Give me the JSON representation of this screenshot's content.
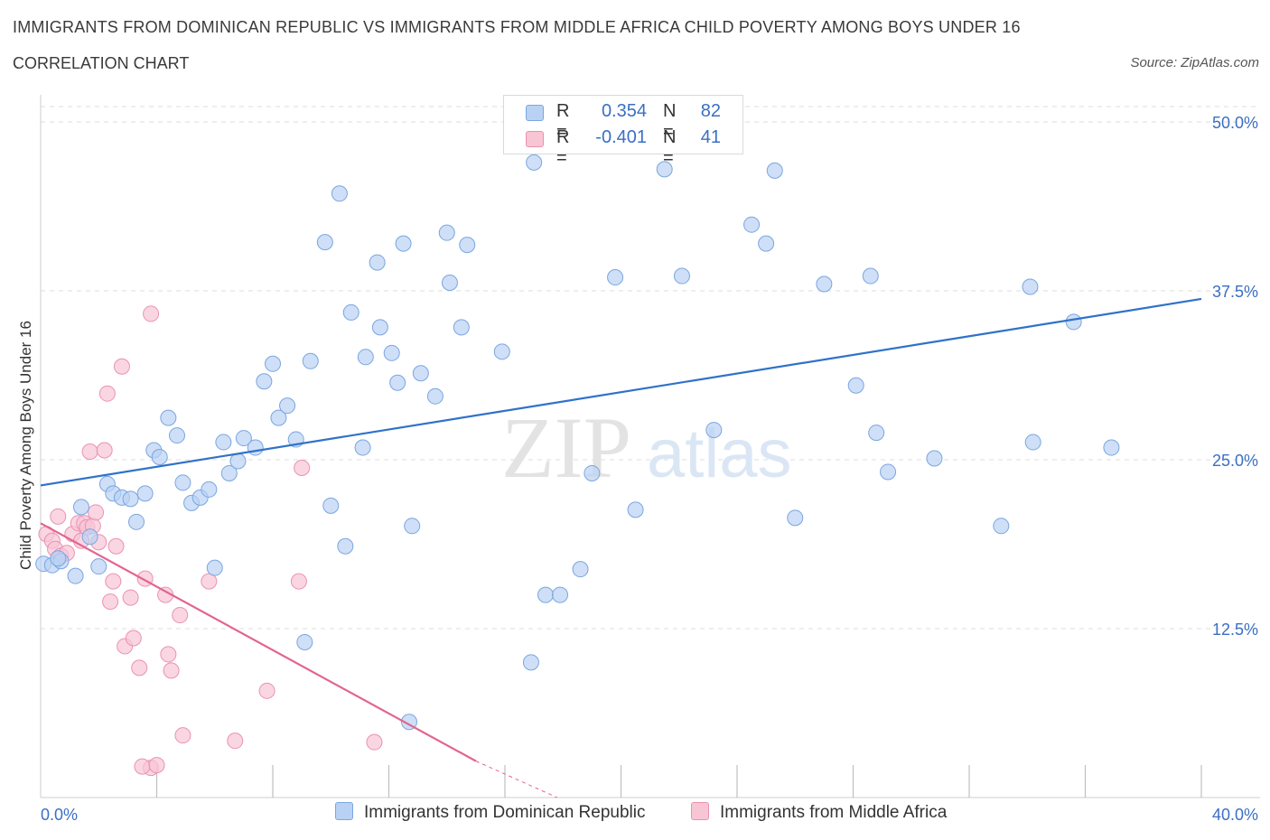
{
  "header": {
    "title": "IMMIGRANTS FROM DOMINICAN REPUBLIC VS IMMIGRANTS FROM MIDDLE AFRICA CHILD POVERTY AMONG BOYS UNDER 16",
    "subtitle": "CORRELATION CHART",
    "source": "Source: ZipAtlas.com"
  },
  "watermark": {
    "zip": "ZIP",
    "atlas": "atlas"
  },
  "colors": {
    "blue_fill": "#b9d2f3",
    "blue_stroke": "#7aa6e0",
    "blue_line": "#2f72c9",
    "pink_fill": "#f8c5d5",
    "pink_stroke": "#ea92b0",
    "pink_line": "#e2658f",
    "tick_label": "#3a6fc4",
    "grid": "#dcdcdc"
  },
  "legend": {
    "r_label": "R =",
    "n_label": "N =",
    "series": [
      {
        "r": "0.354",
        "n": "82"
      },
      {
        "r": "-0.401",
        "n": "41"
      }
    ]
  },
  "chart_data": {
    "type": "scatter",
    "title": "IMMIGRANTS FROM DOMINICAN REPUBLIC VS IMMIGRANTS FROM MIDDLE AFRICA CHILD POVERTY AMONG BOYS UNDER 16",
    "subtitle": "CORRELATION CHART",
    "xlabel": "",
    "ylabel": "Child Poverty Among Boys Under 16",
    "xlim": [
      0,
      40
    ],
    "ylim": [
      0,
      50
    ],
    "x_tick_labels": [
      "0.0%",
      "40.0%"
    ],
    "y_ticks": [
      12.5,
      25.0,
      37.5,
      50.0
    ],
    "y_tick_labels": [
      "12.5%",
      "25.0%",
      "37.5%",
      "50.0%"
    ],
    "grid": "horizontal dashed",
    "legend_placement": "top-center and bottom",
    "series": [
      {
        "name": "Immigrants from Dominican Republic",
        "color": "#b9d2f3",
        "trend": {
          "x0": 0,
          "y0": 23.1,
          "x1": 40,
          "y1": 36.9
        },
        "points": [
          {
            "x": 0.1,
            "y": 17.3
          },
          {
            "x": 0.4,
            "y": 17.2
          },
          {
            "x": 0.7,
            "y": 17.5
          },
          {
            "x": 0.6,
            "y": 17.7
          },
          {
            "x": 1.2,
            "y": 16.4
          },
          {
            "x": 1.4,
            "y": 21.5
          },
          {
            "x": 1.7,
            "y": 19.3
          },
          {
            "x": 2.0,
            "y": 17.1
          },
          {
            "x": 2.3,
            "y": 23.2
          },
          {
            "x": 2.5,
            "y": 22.5
          },
          {
            "x": 2.8,
            "y": 22.2
          },
          {
            "x": 3.1,
            "y": 22.1
          },
          {
            "x": 3.3,
            "y": 20.4
          },
          {
            "x": 3.6,
            "y": 22.5
          },
          {
            "x": 3.9,
            "y": 25.7
          },
          {
            "x": 4.1,
            "y": 25.2
          },
          {
            "x": 4.4,
            "y": 28.1
          },
          {
            "x": 4.7,
            "y": 26.8
          },
          {
            "x": 4.9,
            "y": 23.3
          },
          {
            "x": 5.2,
            "y": 21.8
          },
          {
            "x": 5.5,
            "y": 22.2
          },
          {
            "x": 5.8,
            "y": 22.8
          },
          {
            "x": 6.0,
            "y": 17.0
          },
          {
            "x": 6.3,
            "y": 26.3
          },
          {
            "x": 6.5,
            "y": 24.0
          },
          {
            "x": 6.8,
            "y": 24.9
          },
          {
            "x": 7.0,
            "y": 26.6
          },
          {
            "x": 7.4,
            "y": 25.9
          },
          {
            "x": 7.7,
            "y": 30.8
          },
          {
            "x": 8.0,
            "y": 32.1
          },
          {
            "x": 8.2,
            "y": 28.1
          },
          {
            "x": 8.5,
            "y": 29.0
          },
          {
            "x": 8.8,
            "y": 26.5
          },
          {
            "x": 9.1,
            "y": 11.5
          },
          {
            "x": 9.3,
            "y": 32.3
          },
          {
            "x": 9.8,
            "y": 41.1
          },
          {
            "x": 10.0,
            "y": 21.6
          },
          {
            "x": 10.3,
            "y": 44.7
          },
          {
            "x": 10.5,
            "y": 18.6
          },
          {
            "x": 10.7,
            "y": 35.9
          },
          {
            "x": 11.1,
            "y": 25.9
          },
          {
            "x": 11.2,
            "y": 32.6
          },
          {
            "x": 11.6,
            "y": 39.6
          },
          {
            "x": 11.7,
            "y": 34.8
          },
          {
            "x": 12.1,
            "y": 32.9
          },
          {
            "x": 12.3,
            "y": 30.7
          },
          {
            "x": 12.5,
            "y": 41.0
          },
          {
            "x": 12.7,
            "y": 5.6
          },
          {
            "x": 12.8,
            "y": 20.1
          },
          {
            "x": 13.1,
            "y": 31.4
          },
          {
            "x": 13.6,
            "y": 29.7
          },
          {
            "x": 14.0,
            "y": 41.8
          },
          {
            "x": 14.1,
            "y": 38.1
          },
          {
            "x": 14.5,
            "y": 34.8
          },
          {
            "x": 14.7,
            "y": 40.9
          },
          {
            "x": 15.9,
            "y": 33.0
          },
          {
            "x": 16.9,
            "y": 10.0
          },
          {
            "x": 17.0,
            "y": 47.0
          },
          {
            "x": 17.4,
            "y": 15.0
          },
          {
            "x": 17.9,
            "y": 15.0
          },
          {
            "x": 18.6,
            "y": 16.9
          },
          {
            "x": 19.0,
            "y": 24.0
          },
          {
            "x": 19.8,
            "y": 38.5
          },
          {
            "x": 20.5,
            "y": 21.3
          },
          {
            "x": 21.5,
            "y": 46.5
          },
          {
            "x": 22.1,
            "y": 38.6
          },
          {
            "x": 23.2,
            "y": 27.2
          },
          {
            "x": 24.5,
            "y": 42.4
          },
          {
            "x": 25.0,
            "y": 41.0
          },
          {
            "x": 25.3,
            "y": 46.4
          },
          {
            "x": 26.0,
            "y": 20.7
          },
          {
            "x": 27.0,
            "y": 38.0
          },
          {
            "x": 28.1,
            "y": 30.5
          },
          {
            "x": 28.6,
            "y": 38.6
          },
          {
            "x": 28.8,
            "y": 27.0
          },
          {
            "x": 29.2,
            "y": 24.1
          },
          {
            "x": 30.8,
            "y": 25.1
          },
          {
            "x": 33.1,
            "y": 20.1
          },
          {
            "x": 34.1,
            "y": 37.8
          },
          {
            "x": 34.2,
            "y": 26.3
          },
          {
            "x": 35.6,
            "y": 35.2
          },
          {
            "x": 36.9,
            "y": 25.9
          }
        ]
      },
      {
        "name": "Immigrants from Middle Africa",
        "color": "#f8c5d5",
        "trend": {
          "x0": 0,
          "y0": 20.3,
          "x1": 15.0,
          "y1": 2.7,
          "dashed_to": {
            "x": 17.8,
            "y": 0.0
          }
        },
        "points": [
          {
            "x": 0.2,
            "y": 19.5
          },
          {
            "x": 0.4,
            "y": 19.0
          },
          {
            "x": 0.5,
            "y": 18.4
          },
          {
            "x": 0.6,
            "y": 20.8
          },
          {
            "x": 0.7,
            "y": 17.9
          },
          {
            "x": 0.9,
            "y": 18.1
          },
          {
            "x": 1.1,
            "y": 19.5
          },
          {
            "x": 1.3,
            "y": 20.3
          },
          {
            "x": 1.4,
            "y": 19.0
          },
          {
            "x": 1.5,
            "y": 20.3
          },
          {
            "x": 1.6,
            "y": 20.0
          },
          {
            "x": 1.7,
            "y": 25.6
          },
          {
            "x": 1.8,
            "y": 20.1
          },
          {
            "x": 1.9,
            "y": 21.1
          },
          {
            "x": 2.0,
            "y": 18.9
          },
          {
            "x": 2.2,
            "y": 25.7
          },
          {
            "x": 2.3,
            "y": 29.9
          },
          {
            "x": 2.4,
            "y": 14.5
          },
          {
            "x": 2.5,
            "y": 16.0
          },
          {
            "x": 2.6,
            "y": 18.6
          },
          {
            "x": 2.8,
            "y": 31.9
          },
          {
            "x": 2.9,
            "y": 11.2
          },
          {
            "x": 3.1,
            "y": 14.8
          },
          {
            "x": 3.2,
            "y": 11.8
          },
          {
            "x": 3.4,
            "y": 9.6
          },
          {
            "x": 3.6,
            "y": 16.2
          },
          {
            "x": 3.8,
            "y": 35.8
          },
          {
            "x": 3.8,
            "y": 2.2
          },
          {
            "x": 4.3,
            "y": 15.0
          },
          {
            "x": 4.4,
            "y": 10.6
          },
          {
            "x": 4.5,
            "y": 9.4
          },
          {
            "x": 4.8,
            "y": 13.5
          },
          {
            "x": 4.9,
            "y": 4.6
          },
          {
            "x": 5.8,
            "y": 16.0
          },
          {
            "x": 6.7,
            "y": 4.2
          },
          {
            "x": 7.8,
            "y": 7.9
          },
          {
            "x": 8.9,
            "y": 16.0
          },
          {
            "x": 9.0,
            "y": 24.4
          },
          {
            "x": 11.5,
            "y": 4.1
          },
          {
            "x": 3.5,
            "y": 2.3
          },
          {
            "x": 4.0,
            "y": 2.4
          }
        ]
      }
    ]
  },
  "bottom_legend": {
    "items": [
      {
        "label": "Immigrants from Dominican Republic"
      },
      {
        "label": "Immigrants from Middle Africa"
      }
    ]
  }
}
